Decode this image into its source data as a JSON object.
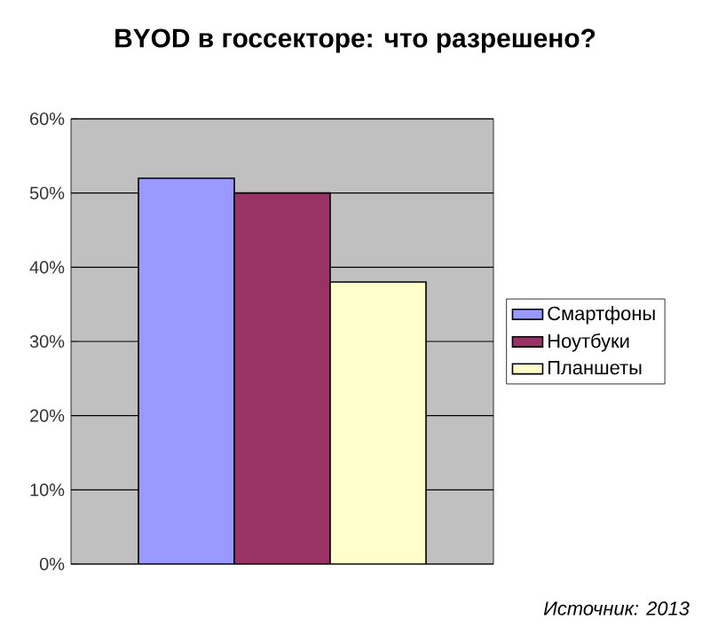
{
  "chart_data": {
    "type": "bar",
    "title": "BYOD в госсекторе: что разрешено?",
    "categories": [
      null
    ],
    "series": [
      {
        "name": "Смартфоны",
        "color": "#9999ff",
        "values": [
          52
        ]
      },
      {
        "name": "Ноутбуки",
        "color": "#993366",
        "values": [
          50
        ]
      },
      {
        "name": "Планшеты",
        "color": "#ffffcc",
        "values": [
          38
        ]
      }
    ],
    "ylim": [
      0,
      60
    ],
    "yticks": [
      {
        "value": 0,
        "label": "0%"
      },
      {
        "value": 10,
        "label": "10%"
      },
      {
        "value": 20,
        "label": "20%"
      },
      {
        "value": 30,
        "label": "30%"
      },
      {
        "value": 40,
        "label": "40%"
      },
      {
        "value": 50,
        "label": "50%"
      },
      {
        "value": 60,
        "label": "60%"
      }
    ],
    "grid": "y",
    "legend": "right",
    "annotations": [
      "*Источник: 2013*"
    ]
  }
}
